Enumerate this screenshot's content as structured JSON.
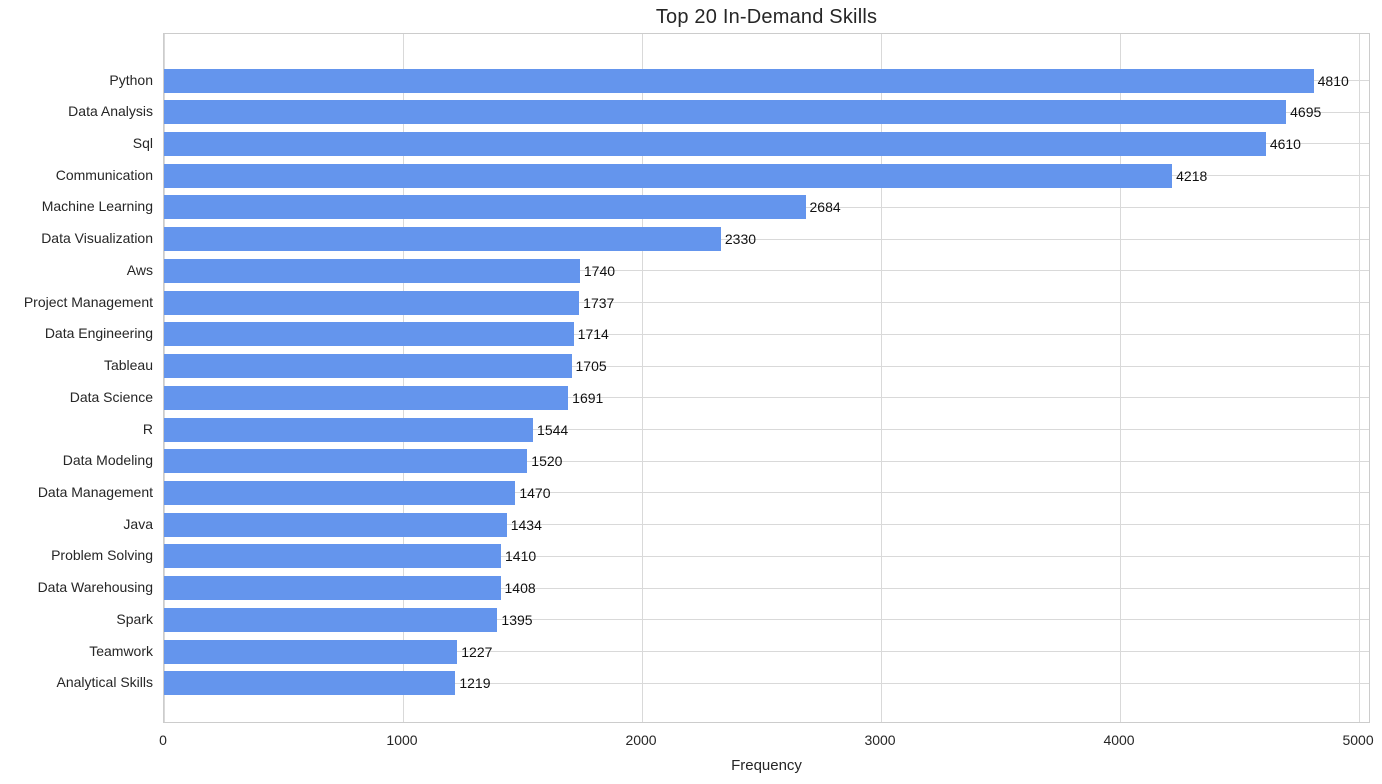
{
  "title": "Top 20 In-Demand Skills",
  "colors": {
    "bar": "#6495ED",
    "grid": "#D9D9D9",
    "spine": "#CCCCCC",
    "text": "#262626",
    "value_label": "#111111",
    "background": "#FFFFFF"
  },
  "chart_data": {
    "type": "bar",
    "orientation": "horizontal",
    "title": "Top 20 In-Demand Skills",
    "xlabel": "Frequency",
    "ylabel": "",
    "categories": [
      "Python",
      "Data Analysis",
      "Sql",
      "Communication",
      "Machine Learning",
      "Data Visualization",
      "Aws",
      "Project Management",
      "Data Engineering",
      "Tableau",
      "Data Science",
      "R",
      "Data Modeling",
      "Data Management",
      "Java",
      "Problem Solving",
      "Data Warehousing",
      "Spark",
      "Teamwork",
      "Analytical Skills"
    ],
    "values": [
      4810,
      4695,
      4610,
      4218,
      2684,
      2330,
      1740,
      1737,
      1714,
      1705,
      1691,
      1544,
      1520,
      1470,
      1434,
      1410,
      1408,
      1395,
      1227,
      1219
    ],
    "bar_value_labels": [
      4810,
      4695,
      4610,
      4218,
      2684,
      2330,
      1740,
      1737,
      1714,
      1705,
      1691,
      1544,
      1520,
      1470,
      1434,
      1410,
      1408,
      1395,
      1227,
      1219
    ],
    "xticks": [
      0,
      1000,
      2000,
      3000,
      4000,
      5000
    ],
    "xlim": [
      0,
      5050
    ],
    "grid": true,
    "legend": false
  }
}
